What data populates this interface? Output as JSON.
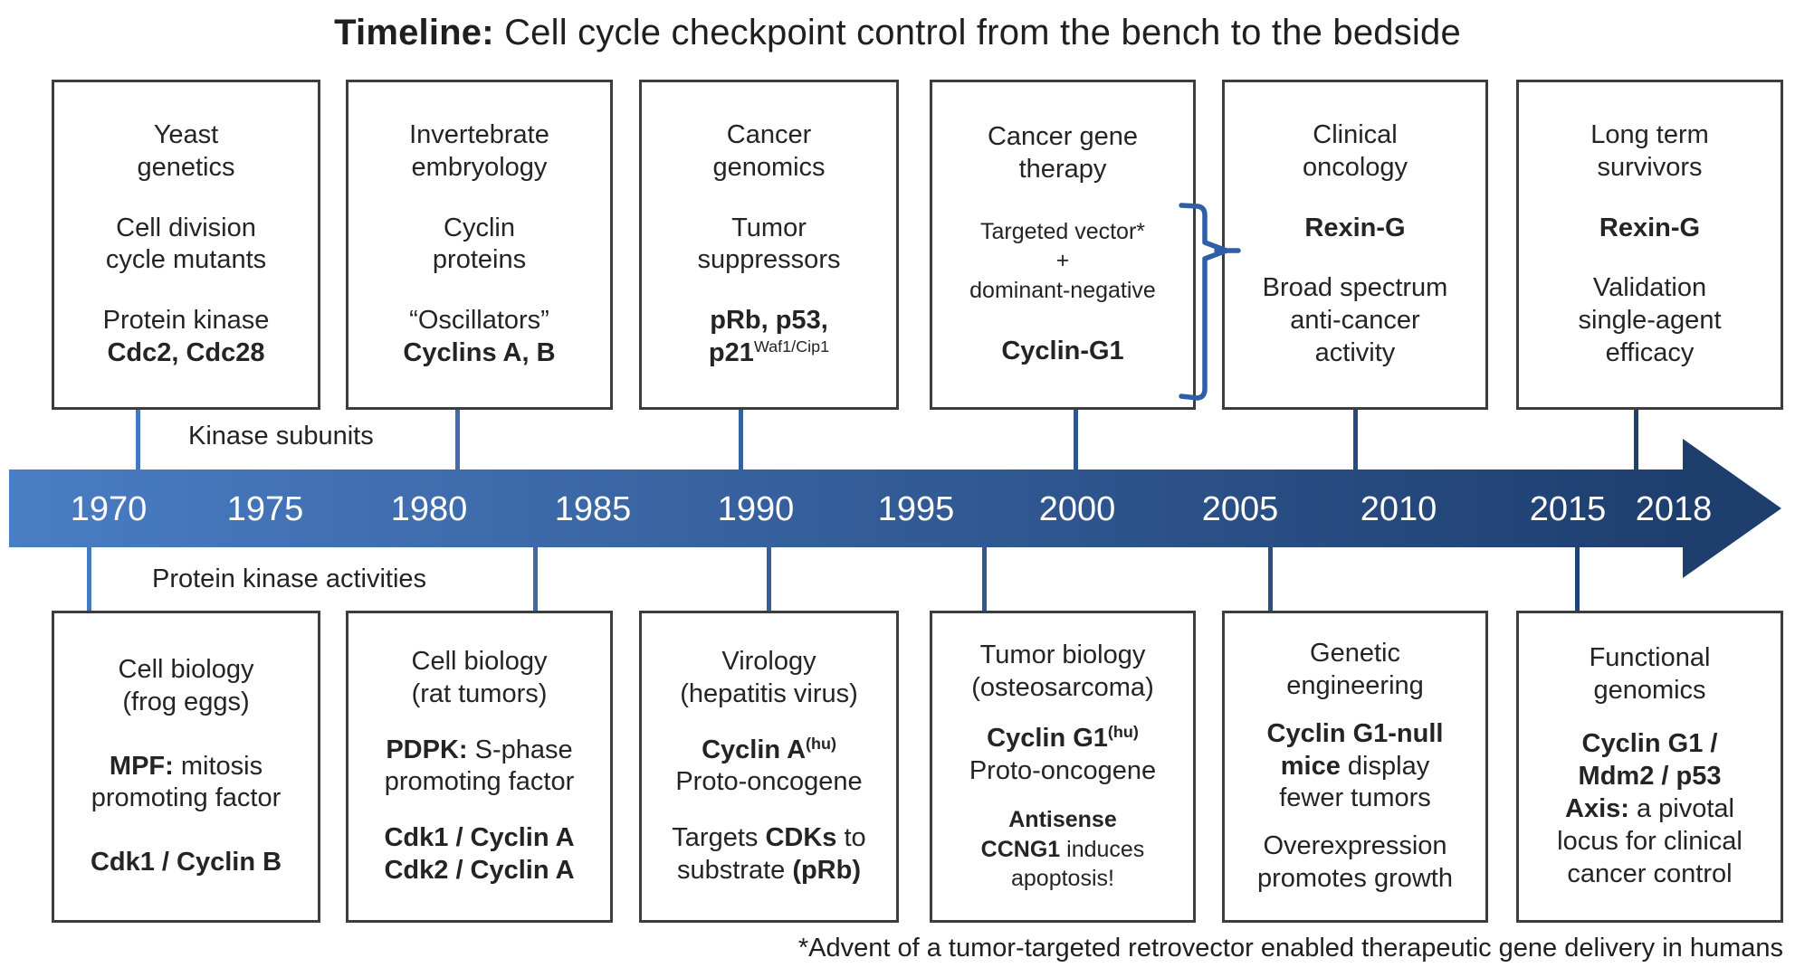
{
  "title": {
    "bold": "Timeline:",
    "rest": " Cell cycle checkpoint control from the bench to the bedside"
  },
  "axis": {
    "label_above": "Kinase subunits",
    "label_below": "Protein kinase activities",
    "years": [
      "1970",
      "1975",
      "1980",
      "1985",
      "1990",
      "1995",
      "2000",
      "2005",
      "2010",
      "2015",
      "2018"
    ],
    "colors": {
      "arrow_start": "#4a7dc4",
      "arrow_end": "#1e3e6e",
      "brace": "#2e5fa8",
      "year_text": "#ffffff",
      "box_border": "#3d3d3d"
    }
  },
  "footnote": "*Advent of a tumor-targeted retrovector enabled therapeutic gene delivery in humans",
  "top_boxes": [
    {
      "id": "yeast-genetics",
      "paragraphs": [
        {
          "lines": [
            [
              {
                "t": "Yeast"
              }
            ],
            [
              {
                "t": "genetics"
              }
            ]
          ]
        },
        {
          "lines": [
            [
              {
                "t": "Cell division"
              }
            ],
            [
              {
                "t": "cycle mutants"
              }
            ]
          ]
        },
        {
          "lines": [
            [
              {
                "t": "Protein kinase"
              }
            ],
            [
              {
                "t": "Cdc2, Cdc28",
                "b": true
              }
            ]
          ]
        }
      ]
    },
    {
      "id": "invertebrate-embryology",
      "paragraphs": [
        {
          "lines": [
            [
              {
                "t": "Invertebrate"
              }
            ],
            [
              {
                "t": "embryology"
              }
            ]
          ]
        },
        {
          "lines": [
            [
              {
                "t": "Cyclin"
              }
            ],
            [
              {
                "t": "proteins"
              }
            ]
          ]
        },
        {
          "lines": [
            [
              {
                "t": "“Oscillators”"
              }
            ],
            [
              {
                "t": "Cyclins A, B",
                "b": true
              }
            ]
          ]
        }
      ]
    },
    {
      "id": "cancer-genomics",
      "paragraphs": [
        {
          "lines": [
            [
              {
                "t": "Cancer"
              }
            ],
            [
              {
                "t": "genomics"
              }
            ]
          ]
        },
        {
          "lines": [
            [
              {
                "t": "Tumor"
              }
            ],
            [
              {
                "t": "suppressors"
              }
            ]
          ]
        },
        {
          "lines": [
            [
              {
                "t": "pRb, p53,",
                "b": true
              }
            ],
            [
              {
                "t": "p21",
                "b": true
              },
              {
                "t": "Waf1/Cip1",
                "sup": true
              }
            ]
          ]
        }
      ]
    },
    {
      "id": "cancer-gene-therapy",
      "paragraphs": [
        {
          "lines": [
            [
              {
                "t": "Cancer gene"
              }
            ],
            [
              {
                "t": "therapy"
              }
            ]
          ]
        },
        {
          "small": true,
          "lines": [
            [
              {
                "t": "Targeted vector*"
              }
            ],
            [
              {
                "t": "+"
              }
            ],
            [
              {
                "t": "dominant-negative"
              }
            ]
          ]
        },
        {
          "lines": [
            [
              {
                "t": "Cyclin-G1",
                "b": true
              }
            ]
          ]
        }
      ]
    },
    {
      "id": "clinical-oncology",
      "paragraphs": [
        {
          "lines": [
            [
              {
                "t": "Clinical"
              }
            ],
            [
              {
                "t": "oncology"
              }
            ]
          ]
        },
        {
          "lines": [
            [
              {
                "t": "Rexin-G",
                "b": true
              }
            ]
          ]
        },
        {
          "lines": [
            [
              {
                "t": "Broad spectrum"
              }
            ],
            [
              {
                "t": "anti-cancer"
              }
            ],
            [
              {
                "t": "activity"
              }
            ]
          ]
        }
      ]
    },
    {
      "id": "long-term-survivors",
      "paragraphs": [
        {
          "lines": [
            [
              {
                "t": "Long term"
              }
            ],
            [
              {
                "t": "survivors"
              }
            ]
          ]
        },
        {
          "lines": [
            [
              {
                "t": "Rexin-G",
                "b": true
              }
            ]
          ]
        },
        {
          "lines": [
            [
              {
                "t": "Validation"
              }
            ],
            [
              {
                "t": "single-agent"
              }
            ],
            [
              {
                "t": "efficacy"
              }
            ]
          ]
        }
      ]
    }
  ],
  "bottom_boxes": [
    {
      "id": "cell-biology-frog-eggs",
      "paragraphs": [
        {
          "lines": [
            [
              {
                "t": "Cell biology"
              }
            ],
            [
              {
                "t": "(frog eggs)"
              }
            ]
          ]
        },
        {
          "lines": [
            [
              {
                "t": "MPF:",
                "b": true
              },
              {
                "t": " mitosis"
              }
            ],
            [
              {
                "t": "promoting factor"
              }
            ]
          ]
        },
        {
          "lines": [
            [
              {
                "t": "Cdk1 / Cyclin B",
                "b": true
              }
            ]
          ]
        }
      ]
    },
    {
      "id": "cell-biology-rat-tumors",
      "paragraphs": [
        {
          "lines": [
            [
              {
                "t": "Cell biology"
              }
            ],
            [
              {
                "t": "(rat tumors)"
              }
            ]
          ]
        },
        {
          "lines": [
            [
              {
                "t": "PDPK:",
                "b": true
              },
              {
                "t": " S-phase"
              }
            ],
            [
              {
                "t": "promoting factor"
              }
            ]
          ]
        },
        {
          "lines": [
            [
              {
                "t": "Cdk1 / Cyclin A",
                "b": true
              }
            ],
            [
              {
                "t": "Cdk2 / Cyclin A",
                "b": true
              }
            ]
          ]
        }
      ]
    },
    {
      "id": "virology-hepatitis-virus",
      "paragraphs": [
        {
          "lines": [
            [
              {
                "t": "Virology"
              }
            ],
            [
              {
                "t": "(hepatitis virus)"
              }
            ]
          ]
        },
        {
          "lines": [
            [
              {
                "t": "Cyclin A",
                "b": true
              },
              {
                "t": "(hu)",
                "sup": true,
                "b": true
              }
            ],
            [
              {
                "t": "Proto-oncogene"
              }
            ]
          ]
        },
        {
          "lines": [
            [
              {
                "t": "Targets "
              },
              {
                "t": "CDKs",
                "b": true
              },
              {
                "t": " to"
              }
            ],
            [
              {
                "t": "substrate "
              },
              {
                "t": "(pRb)",
                "b": true
              }
            ]
          ]
        }
      ]
    },
    {
      "id": "tumor-biology-osteosarcoma",
      "paragraphs": [
        {
          "lines": [
            [
              {
                "t": "Tumor biology"
              }
            ],
            [
              {
                "t": "(osteosarcoma)"
              }
            ]
          ]
        },
        {
          "lines": [
            [
              {
                "t": "Cyclin G1",
                "b": true
              },
              {
                "t": "(hu)",
                "sup": true,
                "b": true
              }
            ],
            [
              {
                "t": "Proto-oncogene"
              }
            ]
          ]
        },
        {
          "small": true,
          "lines": [
            [
              {
                "t": "Antisense",
                "b": true
              }
            ],
            [
              {
                "t": "CCNG1",
                "b": true
              },
              {
                "t": " induces"
              }
            ],
            [
              {
                "t": "apoptosis!"
              }
            ]
          ]
        }
      ]
    },
    {
      "id": "genetic-engineering",
      "paragraphs": [
        {
          "lines": [
            [
              {
                "t": "Genetic"
              }
            ],
            [
              {
                "t": "engineering"
              }
            ]
          ]
        },
        {
          "lines": [
            [
              {
                "t": "Cyclin G1-null",
                "b": true
              }
            ],
            [
              {
                "t": "mice",
                "b": true
              },
              {
                "t": " display"
              }
            ],
            [
              {
                "t": "fewer tumors"
              }
            ]
          ]
        },
        {
          "lines": [
            [
              {
                "t": "Overexpression"
              }
            ],
            [
              {
                "t": "promotes growth"
              }
            ]
          ]
        }
      ]
    },
    {
      "id": "functional-genomics",
      "paragraphs": [
        {
          "lines": [
            [
              {
                "t": "Functional"
              }
            ],
            [
              {
                "t": "genomics"
              }
            ]
          ]
        },
        {
          "lines": [
            [
              {
                "t": "Cyclin G1 /",
                "b": true
              }
            ],
            [
              {
                "t": "Mdm2 / p53",
                "b": true
              }
            ],
            [
              {
                "t": "Axis:",
                "b": true
              },
              {
                "t": " a pivotal"
              }
            ],
            [
              {
                "t": "locus for clinical"
              }
            ],
            [
              {
                "t": "cancer control"
              }
            ]
          ]
        }
      ]
    }
  ]
}
